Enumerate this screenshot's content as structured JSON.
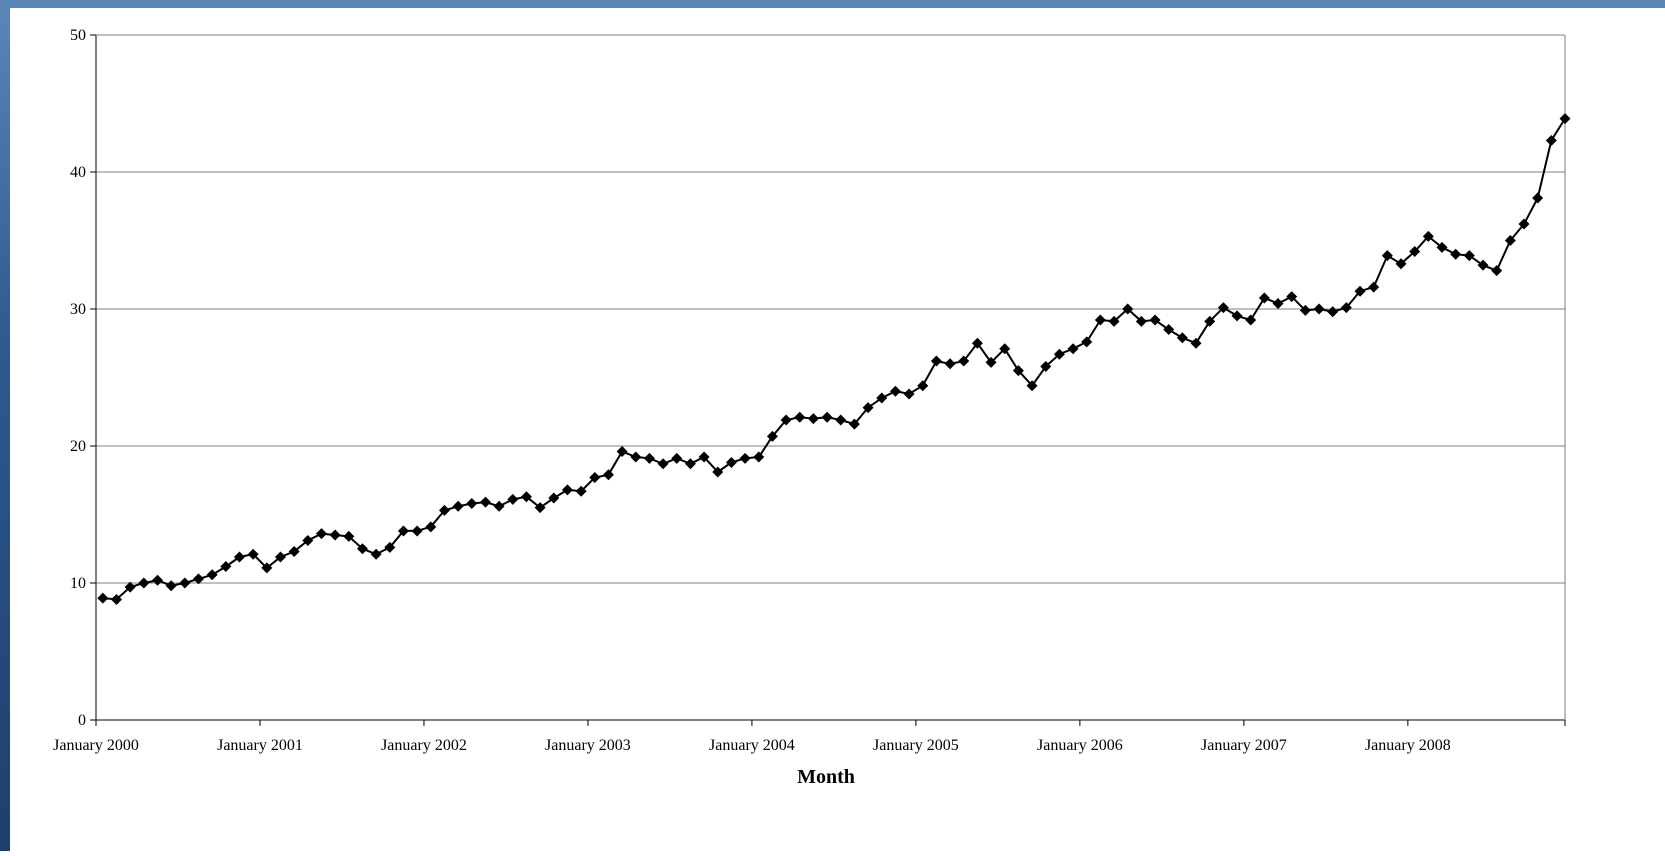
{
  "chart_data": {
    "type": "line",
    "title": "",
    "xlabel": "Month",
    "ylabel": "",
    "ylim": [
      0,
      50
    ],
    "yticks": [
      "0",
      "10",
      "20",
      "30",
      "40",
      "50"
    ],
    "xticks": [
      {
        "label": "January 2000",
        "index": 0
      },
      {
        "label": "January 2001",
        "index": 12
      },
      {
        "label": "January 2002",
        "index": 24
      },
      {
        "label": "January 2003",
        "index": 36
      },
      {
        "label": "January 2004",
        "index": 48
      },
      {
        "label": "January 2005",
        "index": 60
      },
      {
        "label": "January 2006",
        "index": 72
      },
      {
        "label": "January 2007",
        "index": 84
      },
      {
        "label": "January 2008",
        "index": 96
      }
    ],
    "grid": true,
    "legend": "none",
    "line_color": "#000000",
    "marker": "diamond",
    "series": [
      {
        "values": [
          8.9,
          8.8,
          9.7,
          10.0,
          10.2,
          9.8,
          10.0,
          10.3,
          10.6,
          11.2,
          11.9,
          12.1,
          11.1,
          11.9,
          12.3,
          13.1,
          13.6,
          13.5,
          13.4,
          12.5,
          12.1,
          12.6,
          13.8,
          13.8,
          14.1,
          15.3,
          15.6,
          15.8,
          15.9,
          15.6,
          16.1,
          16.3,
          15.5,
          16.2,
          16.8,
          16.7,
          17.7,
          17.9,
          19.6,
          19.2,
          19.1,
          18.7,
          19.1,
          18.7,
          19.2,
          18.1,
          18.8,
          19.1,
          19.2,
          20.7,
          21.9,
          22.1,
          22.0,
          22.1,
          21.9,
          21.6,
          22.8,
          23.5,
          24.0,
          23.8,
          24.4,
          26.2,
          26.0,
          26.2,
          27.5,
          26.1,
          27.1,
          25.5,
          24.4,
          25.8,
          26.7,
          27.1,
          27.6,
          29.2,
          29.1,
          30.0,
          29.1,
          29.2,
          28.5,
          27.9,
          27.5,
          29.1,
          30.1,
          29.5,
          29.2,
          30.8,
          30.4,
          30.9,
          29.9,
          30.0,
          29.8,
          30.1,
          31.3,
          31.6,
          33.9,
          33.3,
          34.2,
          35.3,
          34.5,
          34.0,
          33.9,
          33.2,
          32.8,
          35.0,
          36.2,
          38.1,
          42.3,
          43.9
        ]
      }
    ]
  }
}
